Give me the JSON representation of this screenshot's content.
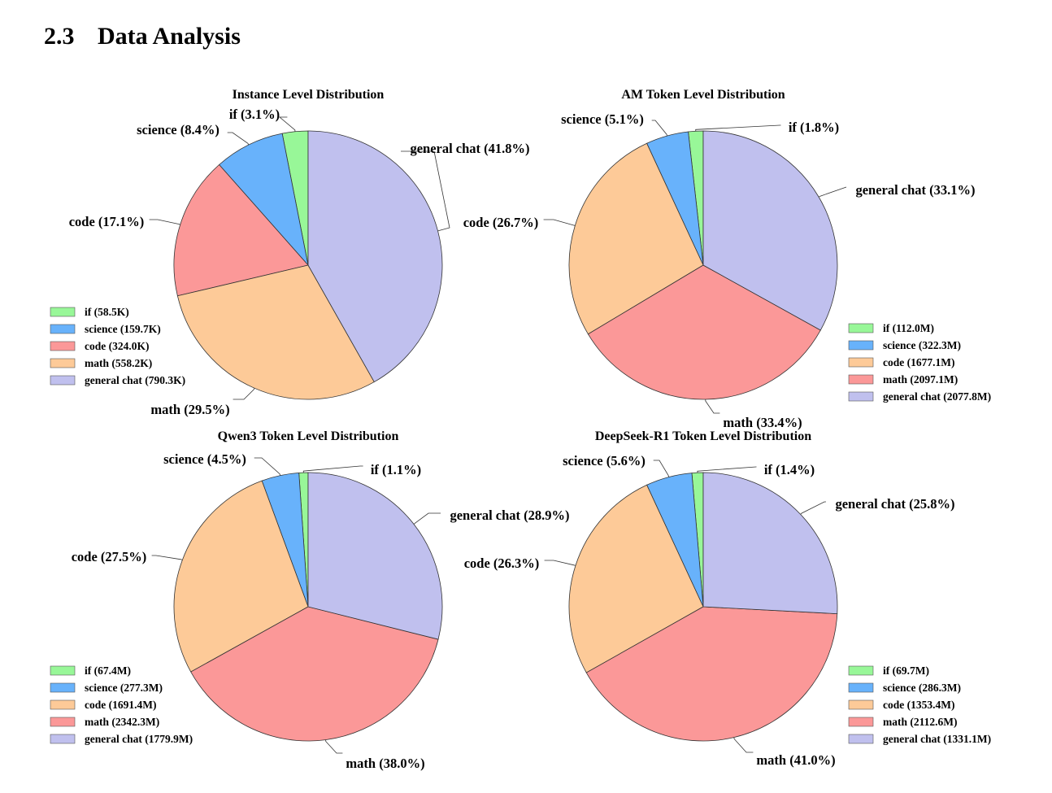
{
  "section": {
    "number": "2.3",
    "title": "Data Analysis"
  },
  "colors": {
    "if": "#98F798",
    "science": "#68B2FB",
    "code_salmon": "#FB9898",
    "math_peach": "#FDCA98",
    "general_chat": "#C0C0EE"
  },
  "chart_data": [
    {
      "type": "pie",
      "title": "Instance Level Distribution",
      "slices": [
        {
          "name": "if",
          "value": 58.5,
          "unit": "K",
          "percent": 3.1,
          "label": "if (3.1%)",
          "legend": "if (58.5K)",
          "color": "#98F798"
        },
        {
          "name": "science",
          "value": 159.7,
          "unit": "K",
          "percent": 8.4,
          "label": "science (8.4%)",
          "legend": "science (159.7K)",
          "color": "#68B2FB"
        },
        {
          "name": "code",
          "value": 324.0,
          "unit": "K",
          "percent": 17.1,
          "label": "code (17.1%)",
          "legend": "code (324.0K)",
          "color": "#FB9898"
        },
        {
          "name": "math",
          "value": 558.2,
          "unit": "K",
          "percent": 29.5,
          "label": "math (29.5%)",
          "legend": "math (558.2K)",
          "color": "#FDCA98"
        },
        {
          "name": "general chat",
          "value": 790.3,
          "unit": "K",
          "percent": 41.8,
          "label": "general chat (41.8%)",
          "legend": "general chat (790.3K)",
          "color": "#C0C0EE"
        }
      ],
      "legend_placement": "lower-left"
    },
    {
      "type": "pie",
      "title": "AM Token Level Distribution",
      "slices": [
        {
          "name": "if",
          "value": 112.0,
          "unit": "M",
          "percent": 1.8,
          "label": "if (1.8%)",
          "legend": "if (112.0M)",
          "color": "#98F798"
        },
        {
          "name": "science",
          "value": 322.3,
          "unit": "M",
          "percent": 5.1,
          "label": "science (5.1%)",
          "legend": "science (322.3M)",
          "color": "#68B2FB"
        },
        {
          "name": "code",
          "value": 1677.1,
          "unit": "M",
          "percent": 26.7,
          "label": "code (26.7%)",
          "legend": "code (1677.1M)",
          "color": "#FDCA98"
        },
        {
          "name": "math",
          "value": 2097.1,
          "unit": "M",
          "percent": 33.4,
          "label": "math (33.4%)",
          "legend": "math (2097.1M)",
          "color": "#FB9898"
        },
        {
          "name": "general chat",
          "value": 2077.8,
          "unit": "M",
          "percent": 33.1,
          "label": "general chat (33.1%)",
          "legend": "general chat (2077.8M)",
          "color": "#C0C0EE"
        }
      ],
      "legend_placement": "lower-right"
    },
    {
      "type": "pie",
      "title": "Qwen3 Token Level Distribution",
      "slices": [
        {
          "name": "if",
          "value": 67.4,
          "unit": "M",
          "percent": 1.1,
          "label": "if (1.1%)",
          "legend": "if (67.4M)",
          "color": "#98F798"
        },
        {
          "name": "science",
          "value": 277.3,
          "unit": "M",
          "percent": 4.5,
          "label": "science (4.5%)",
          "legend": "science (277.3M)",
          "color": "#68B2FB"
        },
        {
          "name": "code",
          "value": 1691.4,
          "unit": "M",
          "percent": 27.5,
          "label": "code (27.5%)",
          "legend": "code (1691.4M)",
          "color": "#FDCA98"
        },
        {
          "name": "math",
          "value": 2342.3,
          "unit": "M",
          "percent": 38.0,
          "label": "math (38.0%)",
          "legend": "math (2342.3M)",
          "color": "#FB9898"
        },
        {
          "name": "general chat",
          "value": 1779.9,
          "unit": "M",
          "percent": 28.9,
          "label": "general chat (28.9%)",
          "legend": "general chat (1779.9M)",
          "color": "#C0C0EE"
        }
      ],
      "legend_placement": "lower-left"
    },
    {
      "type": "pie",
      "title": "DeepSeek-R1 Token Level Distribution",
      "slices": [
        {
          "name": "if",
          "value": 69.7,
          "unit": "M",
          "percent": 1.4,
          "label": "if (1.4%)",
          "legend": "if (69.7M)",
          "color": "#98F798"
        },
        {
          "name": "science",
          "value": 286.3,
          "unit": "M",
          "percent": 5.6,
          "label": "science (5.6%)",
          "legend": "science (286.3M)",
          "color": "#68B2FB"
        },
        {
          "name": "code",
          "value": 1353.4,
          "unit": "M",
          "percent": 26.3,
          "label": "code (26.3%)",
          "legend": "code (1353.4M)",
          "color": "#FDCA98"
        },
        {
          "name": "math",
          "value": 2112.6,
          "unit": "M",
          "percent": 41.0,
          "label": "math (41.0%)",
          "legend": "math (2112.6M)",
          "color": "#FB9898"
        },
        {
          "name": "general chat",
          "value": 1331.1,
          "unit": "M",
          "percent": 25.8,
          "label": "general chat (25.8%)",
          "legend": "general chat (1331.1M)",
          "color": "#C0C0EE"
        }
      ],
      "legend_placement": "lower-right"
    }
  ]
}
